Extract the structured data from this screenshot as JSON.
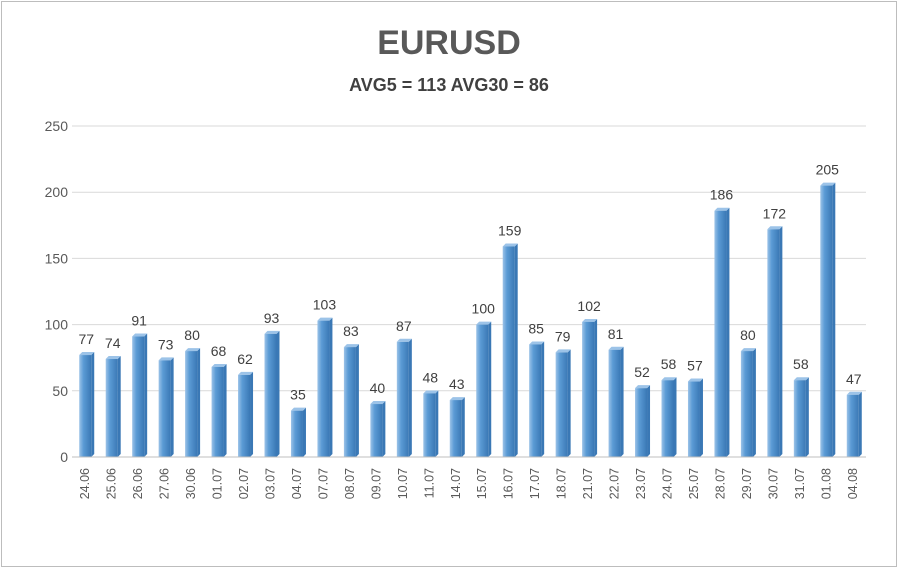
{
  "chart_data": {
    "type": "bar",
    "title": "EURUSD",
    "subtitle": "AVG5 = 113 AVG30 = 86",
    "categories": [
      "24.06",
      "25.06",
      "26.06",
      "27.06",
      "30.06",
      "01.07",
      "02.07",
      "03.07",
      "04.07",
      "07.07",
      "08.07",
      "09.07",
      "10.07",
      "11.07",
      "14.07",
      "15.07",
      "16.07",
      "17.07",
      "18.07",
      "21.07",
      "22.07",
      "23.07",
      "24.07",
      "25.07",
      "28.07",
      "29.07",
      "30.07",
      "31.07",
      "01.08",
      "04.08"
    ],
    "values": [
      77,
      74,
      91,
      73,
      80,
      68,
      62,
      93,
      35,
      103,
      83,
      40,
      87,
      48,
      43,
      100,
      159,
      85,
      79,
      102,
      81,
      52,
      58,
      57,
      186,
      80,
      172,
      58,
      205,
      47
    ],
    "ylim": [
      0,
      250
    ],
    "yticks": [
      0,
      50,
      100,
      150,
      200,
      250
    ],
    "grid": true,
    "legend": "none",
    "xlabel": "",
    "ylabel": "",
    "colors": {
      "bar": "#5b9bd5",
      "bar_light": "#9cc3e8",
      "bar_dark": "#3a78b5",
      "grid": "#d9d9d9"
    }
  }
}
